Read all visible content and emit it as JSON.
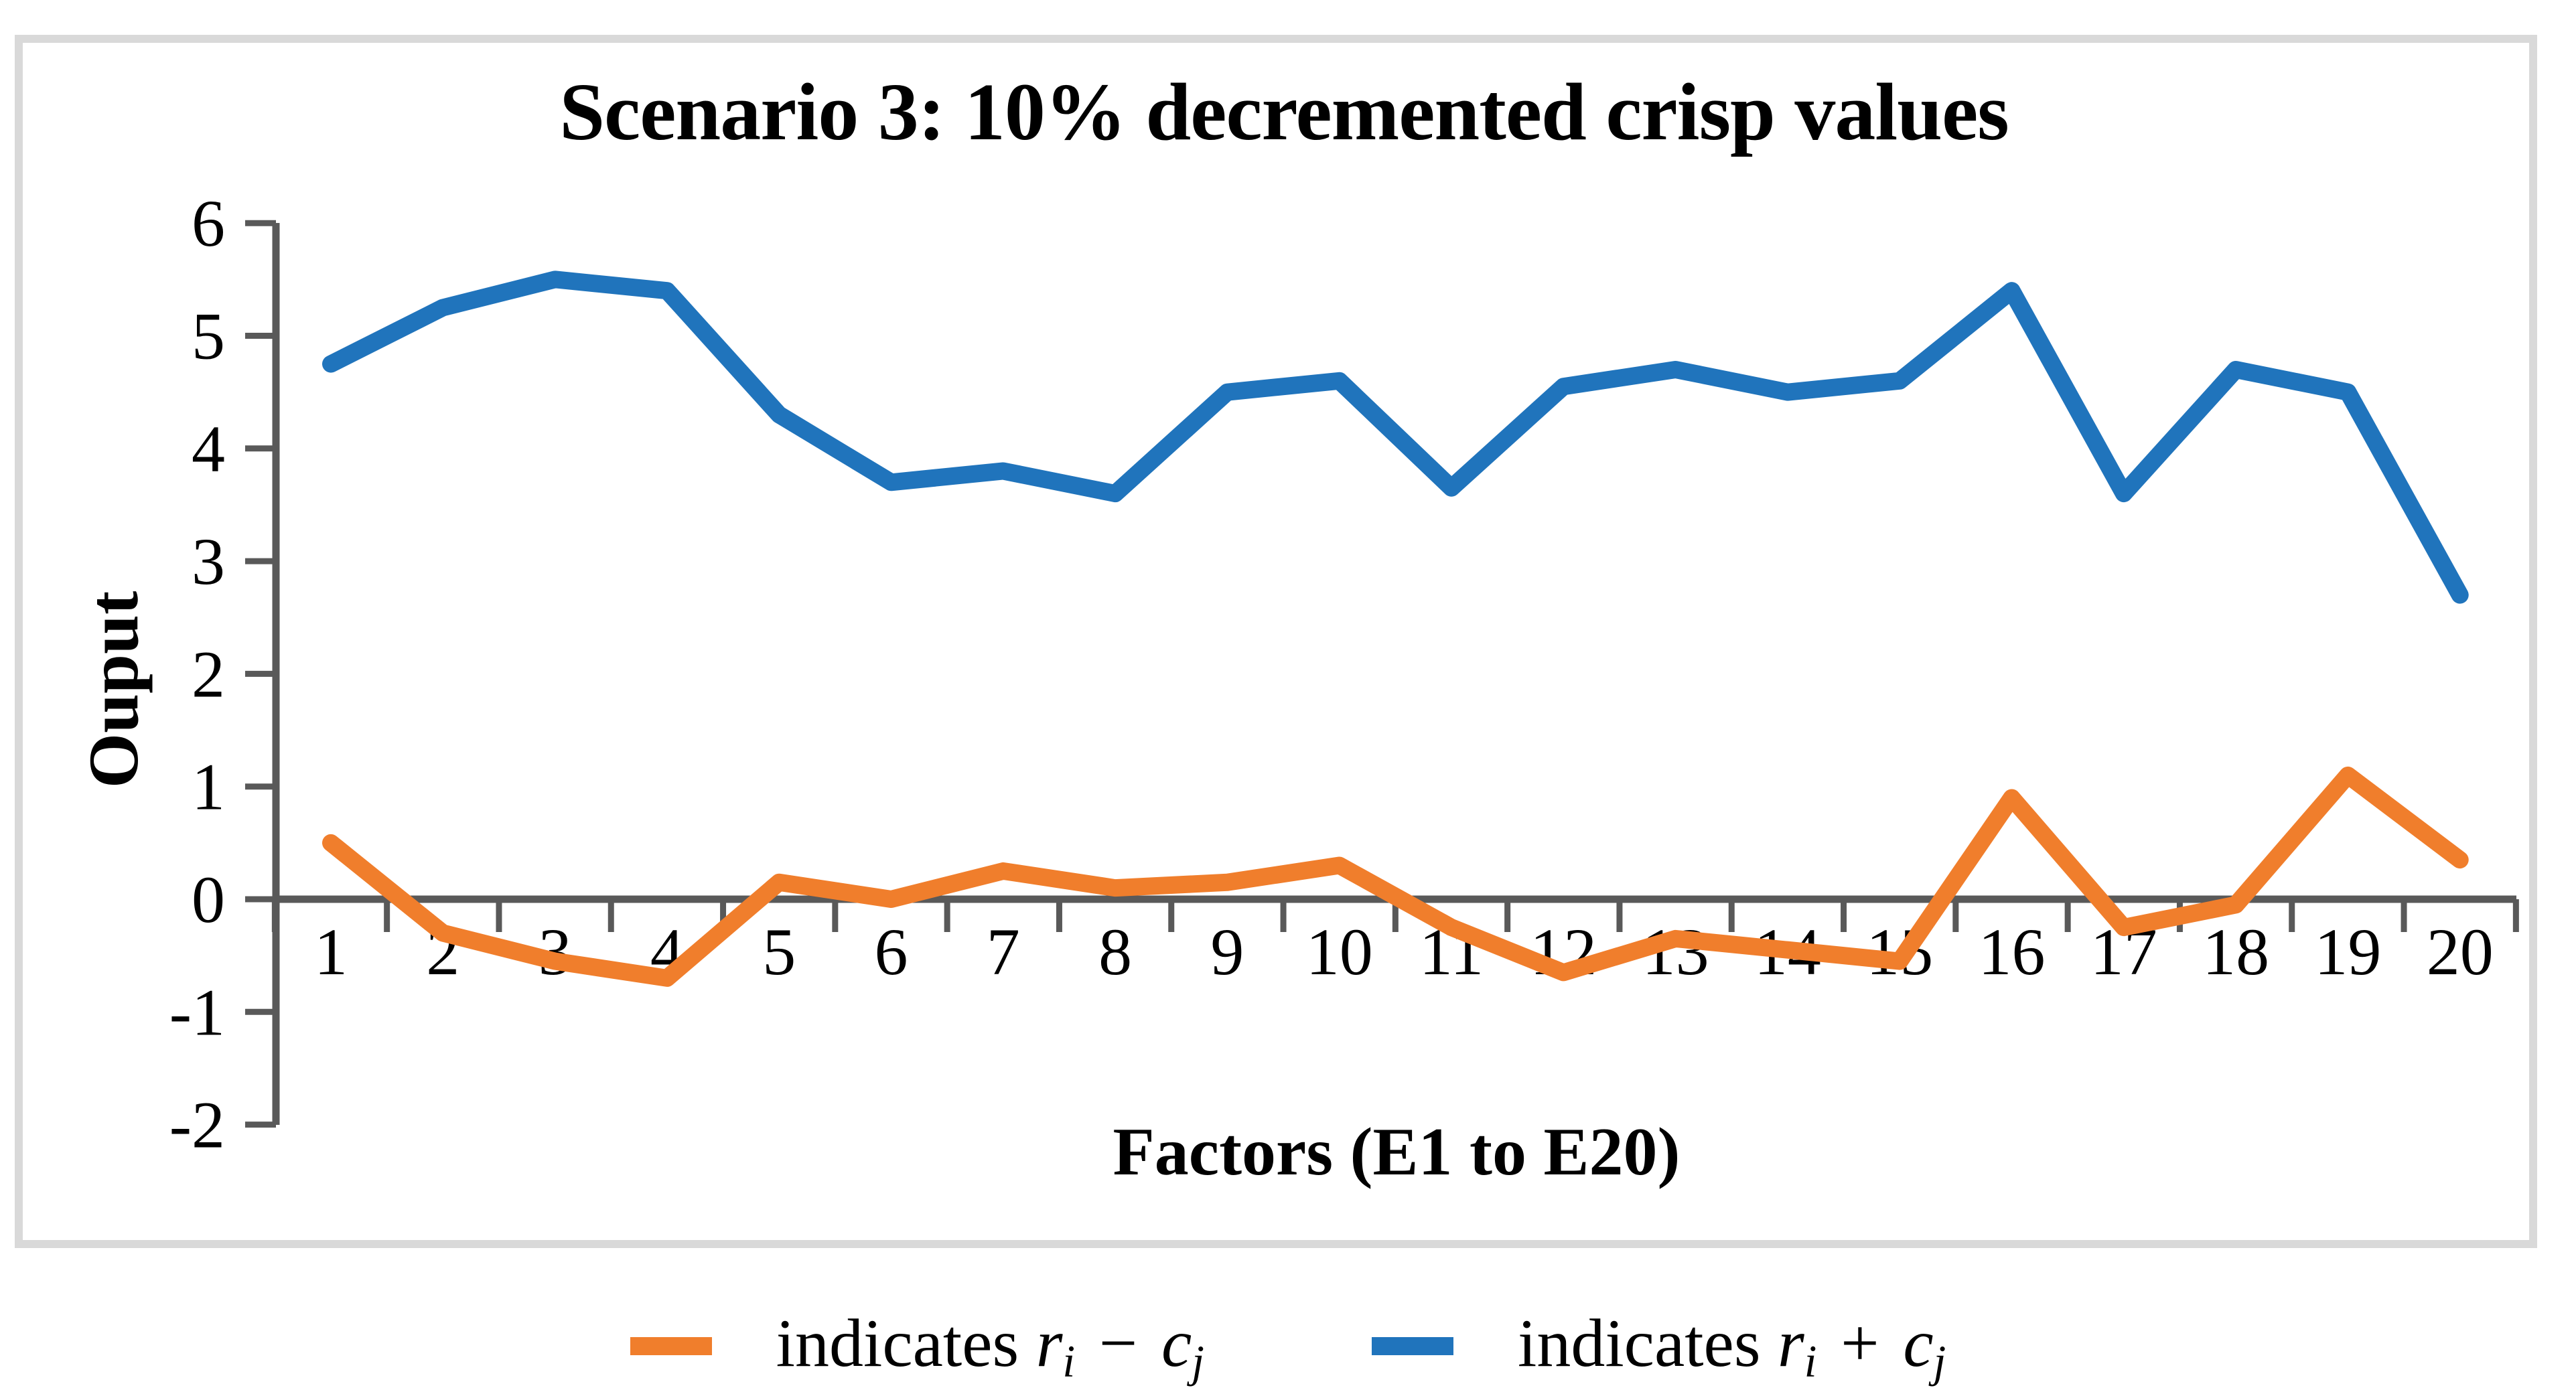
{
  "chart": {
    "title": "Scenario 3: 10% decremented crisp values",
    "y_axis_label": "Ouput",
    "x_axis_label": "Factors (E1 to E20)"
  },
  "chart_data": {
    "type": "line",
    "title": "Scenario 3: 10% decremented crisp values",
    "xlabel": "Factors (E1 to E20)",
    "ylabel": "Ouput",
    "x": [
      1,
      2,
      3,
      4,
      5,
      6,
      7,
      8,
      9,
      10,
      11,
      12,
      13,
      14,
      15,
      16,
      17,
      18,
      19,
      20
    ],
    "x_tick_labels": [
      "1",
      "2",
      "3",
      "4",
      "5",
      "6",
      "7",
      "8",
      "9",
      "10",
      "11",
      "12",
      "13",
      "14",
      "15",
      "16",
      "17",
      "18",
      "19",
      "20"
    ],
    "y_tick_values": [
      6,
      5,
      4,
      3,
      2,
      1,
      0,
      -1,
      -2
    ],
    "y_tick_labels": [
      "6",
      "5",
      "4",
      "3",
      "2",
      "1",
      "0",
      "-1",
      "-2"
    ],
    "ylim": [
      -2,
      6
    ],
    "grid": false,
    "legend_position": "bottom",
    "series": [
      {
        "name": "indicates ri − cj",
        "color": "#F07E2C",
        "values": [
          0.5,
          -0.3,
          -0.55,
          -0.7,
          0.15,
          0.0,
          0.25,
          0.1,
          0.15,
          0.3,
          -0.25,
          -0.65,
          -0.35,
          -0.45,
          -0.55,
          0.9,
          -0.25,
          -0.05,
          1.1,
          0.35
        ]
      },
      {
        "name": "indicates ri + cj",
        "color": "#2074BC",
        "values": [
          4.75,
          5.25,
          5.5,
          5.4,
          4.3,
          3.7,
          3.8,
          3.6,
          4.5,
          4.6,
          3.65,
          4.55,
          4.7,
          4.5,
          4.6,
          5.4,
          3.6,
          4.7,
          4.5,
          2.7
        ]
      }
    ]
  },
  "legend": {
    "items": [
      {
        "swatch_color": "#F07E2C",
        "prefix": "indicates ",
        "var1": "r",
        "sub1": "i",
        "operator": "−",
        "var2": "c",
        "sub2": "j"
      },
      {
        "swatch_color": "#2074BC",
        "prefix": "indicates ",
        "var1": "r",
        "sub1": "i",
        "operator": "+",
        "var2": "c",
        "sub2": "j"
      }
    ]
  },
  "colors": {
    "background": "#FFFFFF",
    "frame_border": "#D9D9D9",
    "axis": "#595959",
    "text": "#000000",
    "series_minus": "#F07E2C",
    "series_plus": "#2074BC"
  }
}
